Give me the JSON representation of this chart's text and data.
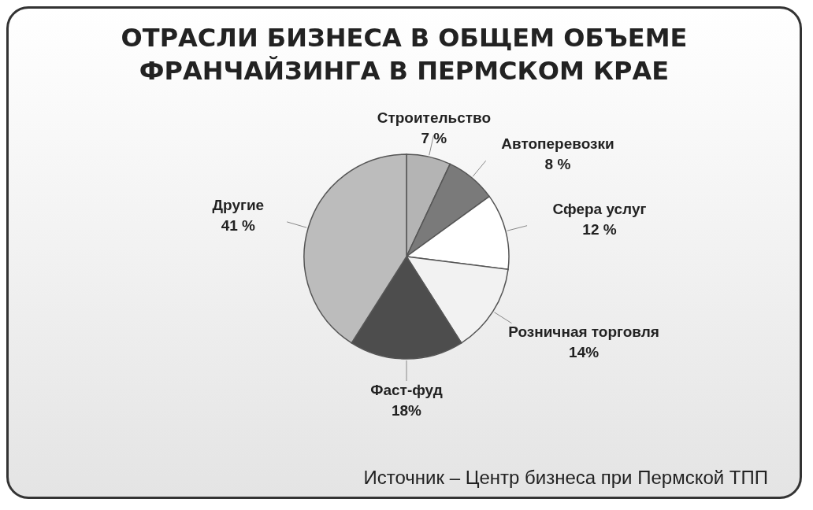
{
  "chart_data": {
    "type": "pie",
    "title": "ОТРАСЛИ БИЗНЕСА В ОБЩЕМ ОБЪЕМЕ ФРАНЧАЙЗИНГА В ПЕРМСКОМ КРАЕ",
    "categories": [
      "Строительство",
      "Автоперевозки",
      "Сфера услуг",
      "Розничная торговля",
      "Фаст-фуд",
      "Другие"
    ],
    "values": [
      7,
      8,
      12,
      14,
      18,
      41
    ],
    "value_labels": [
      "7 %",
      "8 %",
      "12 %",
      "14%",
      "18%",
      "41 %"
    ],
    "colors": [
      "#b4b4b4",
      "#7a7a7a",
      "#ffffff",
      "#f2f2f2",
      "#4d4d4d",
      "#bcbcbc"
    ],
    "annotations": [
      "Источник – Центр бизнеса при Пермской ТПП"
    ]
  }
}
